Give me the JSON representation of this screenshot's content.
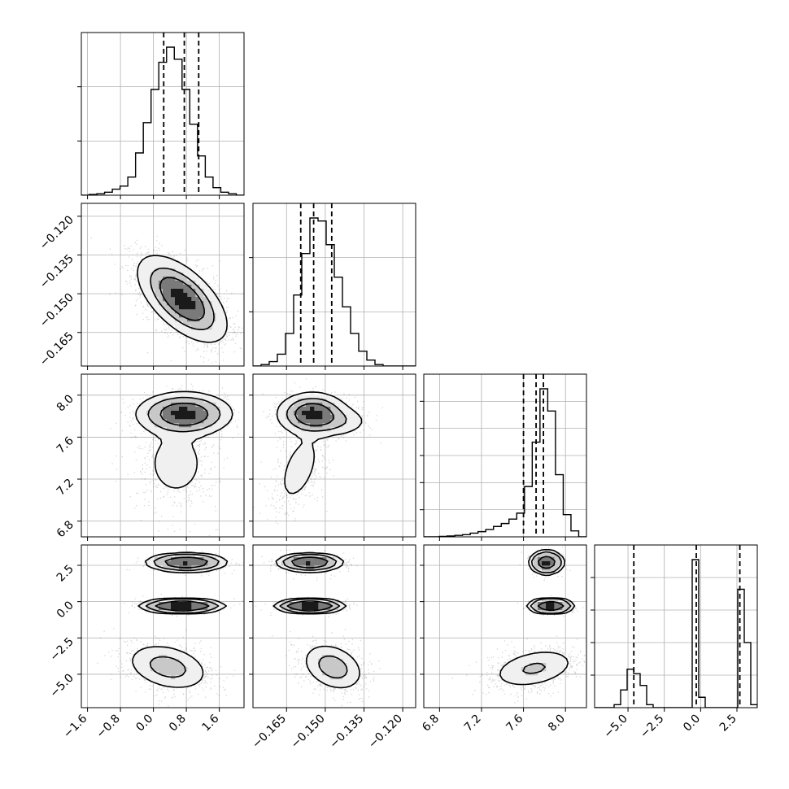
{
  "chart_data": {
    "type": "corner",
    "params": [
      {
        "range": [
          -1.75,
          2.2
        ],
        "ticks": [
          -1.6,
          -0.8,
          0.0,
          0.8,
          1.6
        ],
        "tick_labels": [
          "−1.6",
          "−0.8",
          "0.0",
          "0.8",
          "1.6"
        ]
      },
      {
        "range": [
          -0.178,
          -0.115
        ],
        "ticks": [
          -0.165,
          -0.15,
          -0.135,
          -0.12
        ],
        "tick_labels": [
          "−0.165",
          "−0.150",
          "−0.135",
          "−0.120"
        ]
      },
      {
        "range": [
          6.65,
          8.2
        ],
        "ticks": [
          6.8,
          7.2,
          7.6,
          8.0
        ],
        "tick_labels": [
          "6.8",
          "7.2",
          "7.6",
          "8.0"
        ]
      },
      {
        "range": [
          -7.3,
          3.9
        ],
        "ticks": [
          -5.0,
          -2.5,
          0.0,
          2.5
        ],
        "tick_labels": [
          "−5.0",
          "−2.5",
          "0.0",
          "2.5"
        ]
      }
    ],
    "histograms": [
      {
        "param": 0,
        "y_ticks": [
          0.3333,
          0.6667
        ],
        "counts": [
          0,
          0.5,
          1,
          2,
          4,
          6,
          12,
          28,
          48,
          70,
          88,
          98,
          90,
          70,
          47,
          26,
          12,
          5,
          2,
          1,
          0
        ],
        "quantiles": [
          0.25,
          0.75,
          1.1
        ]
      },
      {
        "param": 1,
        "y_ticks": [
          0.3333,
          0.6667
        ],
        "counts": [
          0,
          1,
          3,
          8,
          22,
          48,
          76,
          100,
          98,
          82,
          60,
          40,
          22,
          10,
          4,
          1,
          0,
          0,
          0,
          0
        ],
        "quantiles": [
          -0.1595,
          -0.1545,
          -0.1475
        ]
      },
      {
        "param": 2,
        "y_ticks": [
          0.1667,
          0.3333,
          0.5,
          0.6667,
          0.8333
        ],
        "counts": [
          0,
          0,
          0.3,
          0.6,
          1,
          1.5,
          2.5,
          3.5,
          5,
          7,
          9,
          12,
          16,
          34,
          64,
          100,
          85,
          42,
          15,
          4,
          0
        ],
        "quantiles": [
          7.6,
          7.72,
          7.79
        ]
      },
      {
        "param": 3,
        "y_ticks": [
          0.2,
          0.4,
          0.6,
          0.8
        ],
        "counts": [
          0,
          0,
          0,
          2,
          12,
          26,
          23,
          15,
          2,
          0,
          0,
          0,
          0,
          0,
          0,
          100,
          7,
          0,
          0,
          0,
          0,
          0,
          80,
          44,
          2
        ],
        "quantiles": [
          -4.6,
          -0.3,
          2.7
        ]
      }
    ],
    "scatter_panels": [
      {
        "x_param": 0,
        "y_param": 1
      },
      {
        "x_param": 0,
        "y_param": 2
      },
      {
        "x_param": 1,
        "y_param": 2
      },
      {
        "x_param": 0,
        "y_param": 3
      },
      {
        "x_param": 1,
        "y_param": 3
      },
      {
        "x_param": 2,
        "y_param": 3
      }
    ],
    "clusters": {
      "0-1": [
        {
          "mx": 0.7,
          "my": -0.152,
          "sx": 0.55,
          "sy": 0.0085,
          "rho": -0.6,
          "w": 1
        }
      ],
      "0-2": [
        {
          "mx": 0.75,
          "my": 7.82,
          "sx": 0.5,
          "sy": 0.09,
          "rho": 0,
          "w": 0.78
        },
        {
          "mx": 0.55,
          "my": 7.35,
          "sx": 0.5,
          "sy": 0.23,
          "rho": 0,
          "w": 0.22
        }
      ],
      "1-2": [
        {
          "mx": -0.155,
          "my": 7.82,
          "sx": 0.006,
          "sy": 0.09,
          "rho": 0,
          "w": 0.7
        },
        {
          "mx": -0.145,
          "my": 7.75,
          "sx": 0.006,
          "sy": 0.07,
          "rho": 0,
          "w": 0.12
        },
        {
          "mx": -0.16,
          "my": 7.3,
          "sx": 0.0055,
          "sy": 0.23,
          "rho": 0.5,
          "w": 0.18
        }
      ],
      "0-3": [
        {
          "mx": 0.8,
          "my": 2.7,
          "sx": 0.45,
          "sy": 0.3,
          "rho": 0,
          "w": 0.33
        },
        {
          "mx": 0.7,
          "my": -0.3,
          "sx": 0.45,
          "sy": 0.22,
          "rho": 0,
          "w": 0.34
        },
        {
          "mx": 0.35,
          "my": -4.5,
          "sx": 0.55,
          "sy": 0.9,
          "rho": -0.3,
          "w": 0.33
        }
      ],
      "1-3": [
        {
          "mx": -0.156,
          "my": 2.7,
          "sx": 0.006,
          "sy": 0.3,
          "rho": 0,
          "w": 0.33
        },
        {
          "mx": -0.156,
          "my": -0.3,
          "sx": 0.006,
          "sy": 0.22,
          "rho": 0,
          "w": 0.34
        },
        {
          "mx": -0.147,
          "my": -4.5,
          "sx": 0.0065,
          "sy": 0.9,
          "rho": -0.3,
          "w": 0.33
        }
      ],
      "2-3": [
        {
          "mx": 7.82,
          "my": 2.7,
          "sx": 0.07,
          "sy": 0.35,
          "rho": 0,
          "w": 0.33
        },
        {
          "mx": 7.86,
          "my": -0.3,
          "sx": 0.09,
          "sy": 0.22,
          "rho": 0,
          "w": 0.34
        },
        {
          "mx": 7.7,
          "my": -4.6,
          "sx": 0.22,
          "sy": 0.75,
          "rho": 0.35,
          "w": 0.33
        }
      ]
    },
    "grid": true,
    "quantile_lines": "dashed"
  }
}
